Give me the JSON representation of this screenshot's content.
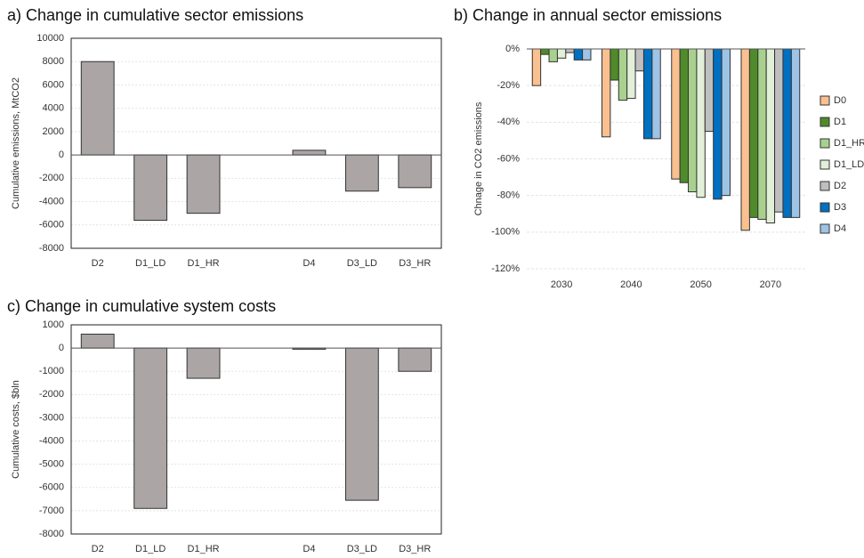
{
  "chart_data": [
    {
      "type": "bar",
      "title": "a) Change in cumulative sector emissions",
      "y_label": "Cumulative emissions, MtCO2",
      "categories": [
        "D2",
        "D1_LD",
        "D1_HR",
        null,
        "D4",
        "D3_LD",
        "D3_HR"
      ],
      "values": [
        8000,
        -5600,
        -5000,
        null,
        400,
        -3100,
        -2800
      ],
      "color": "#aba5a5",
      "ylim": [
        -8000,
        10000
      ],
      "yticks": [
        -8000,
        -6000,
        -4000,
        -2000,
        0,
        2000,
        4000,
        6000,
        8000,
        10000
      ],
      "grid": true
    },
    {
      "type": "bar",
      "title": "b) Change in annual sector emissions",
      "y_label": "Chnage in CO2 emissions",
      "categories": [
        "2030",
        "2040",
        "2050",
        "2070"
      ],
      "series": [
        {
          "name": "D0",
          "color": "#fac090",
          "values": [
            -20,
            -48,
            -71,
            -99
          ]
        },
        {
          "name": "D1",
          "color": "#4f8a2b",
          "values": [
            -3,
            -17,
            -73,
            -92
          ]
        },
        {
          "name": "D1_HR",
          "color": "#a9d18e",
          "values": [
            -7,
            -28,
            -78,
            -93
          ]
        },
        {
          "name": "D1_LD",
          "color": "#e2efd9",
          "values": [
            -5,
            -27,
            -81,
            -95
          ]
        },
        {
          "name": "D2",
          "color": "#bfbfbf",
          "values": [
            -2,
            -12,
            -45,
            -89
          ]
        },
        {
          "name": "D3",
          "color": "#0070c0",
          "values": [
            -6,
            -49,
            -82,
            -92
          ]
        },
        {
          "name": "D4",
          "color": "#9dc3e6",
          "values": [
            -6,
            -49,
            -80,
            -92
          ]
        }
      ],
      "ylim": [
        -120,
        0
      ],
      "yticks": [
        {
          "value": -120,
          "label": "-120%"
        },
        {
          "value": -100,
          "label": "-100%"
        },
        {
          "value": -80,
          "label": "-80%"
        },
        {
          "value": -60,
          "label": "-60%"
        },
        {
          "value": -40,
          "label": "-40%"
        },
        {
          "value": -20,
          "label": "-20%"
        },
        {
          "value": 0,
          "label": "0%"
        }
      ],
      "grid": true,
      "legend": "right"
    },
    {
      "type": "bar",
      "title": "c) Change in cumulative system costs",
      "y_label": "Cumulative costs, $bln",
      "categories": [
        "D2",
        "D1_LD",
        "D1_HR",
        null,
        "D4",
        "D3_LD",
        "D3_HR"
      ],
      "values": [
        600,
        -6900,
        -1300,
        null,
        -50,
        -6550,
        -1000
      ],
      "color": "#aba5a5",
      "ylim": [
        -8000,
        1000
      ],
      "yticks": [
        -8000,
        -7000,
        -6000,
        -5000,
        -4000,
        -3000,
        -2000,
        -1000,
        0,
        1000
      ],
      "grid": true
    }
  ]
}
